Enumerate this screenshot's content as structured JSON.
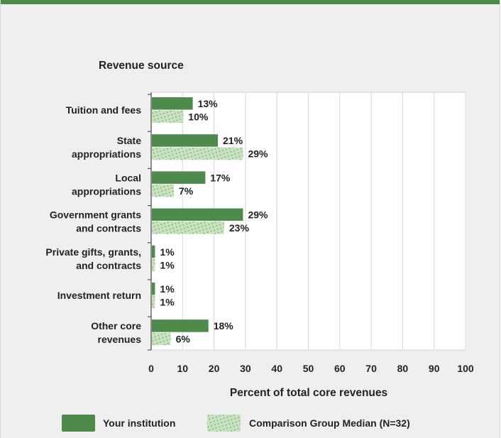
{
  "chart_data": {
    "type": "bar",
    "orientation": "horizontal",
    "title": "Revenue source",
    "xlabel": "Percent of total core revenues",
    "xlim": [
      0,
      100
    ],
    "xticks": [
      0,
      10,
      20,
      30,
      40,
      50,
      60,
      70,
      80,
      90,
      100
    ],
    "grid": true,
    "legend_position": "bottom",
    "categories": [
      [
        "Tuition and fees"
      ],
      [
        "State",
        "appropriations"
      ],
      [
        "Local",
        "appropriations"
      ],
      [
        "Government grants",
        "and contracts"
      ],
      [
        "Private gifts, grants,",
        "and contracts"
      ],
      [
        "Investment return"
      ],
      [
        "Other core",
        "revenues"
      ]
    ],
    "series": [
      {
        "name": "Your institution",
        "values": [
          13,
          21,
          17,
          29,
          1,
          1,
          18
        ],
        "labels": [
          "13%",
          "21%",
          "17%",
          "29%",
          "1%",
          "1%",
          "18%"
        ],
        "color": "#4e8a4c",
        "pattern": "solid"
      },
      {
        "name": "Comparison Group Median (N=32)",
        "values": [
          10,
          29,
          7,
          23,
          1,
          1,
          6
        ],
        "labels": [
          "10%",
          "29%",
          "7%",
          "23%",
          "1%",
          "1%",
          "6%"
        ],
        "color": "#c8e3bf",
        "pattern": "dotted"
      }
    ]
  },
  "colors": {
    "accent": "#4e8a4c",
    "background": "#efeff0",
    "plot_background": "#ffffff"
  }
}
